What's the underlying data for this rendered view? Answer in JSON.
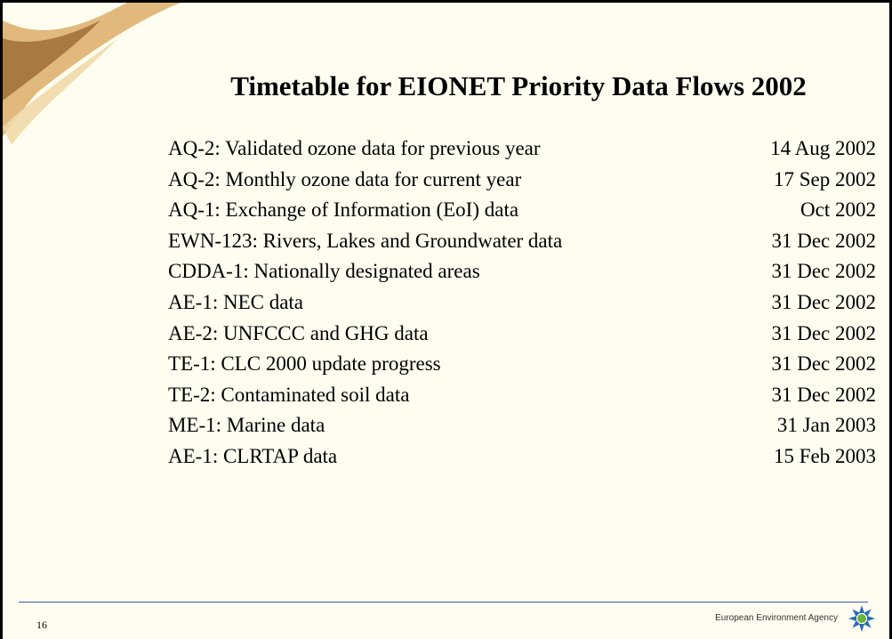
{
  "title": "Timetable for EIONET Priority Data Flows 2002",
  "rows": [
    {
      "item": "AQ-2: Validated ozone data for previous year",
      "date": "14 Aug 2002"
    },
    {
      "item": "AQ-2: Monthly ozone data for current year",
      "date": "17 Sep 2002"
    },
    {
      "item": "AQ-1: Exchange of Information (EoI) data",
      "date": "Oct 2002"
    },
    {
      "item": "EWN-123: Rivers, Lakes and Groundwater data",
      "date": "31 Dec 2002"
    },
    {
      "item": "CDDA-1: Nationally designated areas",
      "date": "31 Dec 2002"
    },
    {
      "item": "AE-1: NEC data",
      "date": "31 Dec 2002"
    },
    {
      "item": "AE-2: UNFCCC and GHG data",
      "date": "31 Dec 2002"
    },
    {
      "item": "TE-1: CLC 2000 update progress",
      "date": "31 Dec 2002"
    },
    {
      "item": "TE-2: Contaminated soil data",
      "date": "31 Dec 2002"
    },
    {
      "item": "ME-1: Marine data",
      "date": "31 Jan 2003"
    },
    {
      "item": "AE-1: CLRTAP data",
      "date": "15 Feb 2003"
    }
  ],
  "footer": {
    "page_number": "16",
    "organization": "European Environment Agency"
  }
}
